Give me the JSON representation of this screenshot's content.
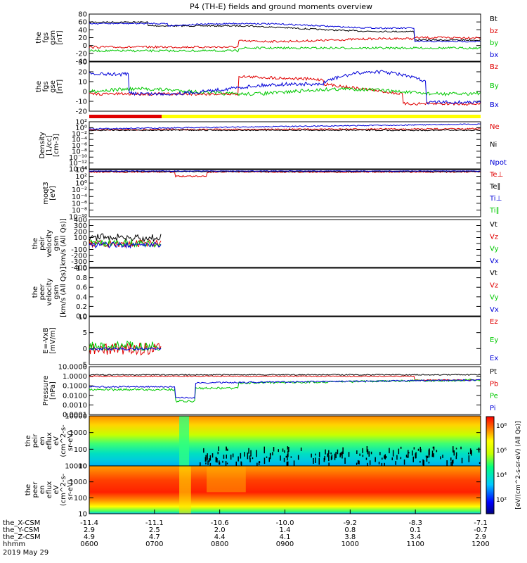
{
  "title": "P4 (TH-E) fields and ground moments overview",
  "colors": {
    "black": "#000000",
    "red": "#e00000",
    "green": "#00c800",
    "blue": "#0000d8",
    "yellow": "#ffff00"
  },
  "chart_data": [
    {
      "type": "line",
      "name": "fgs-gsm",
      "ylabel": [
        "the",
        "fgs",
        "gsm",
        "[nT]"
      ],
      "ylim": [
        -40,
        80
      ],
      "ticks": [
        "80",
        "60",
        "40",
        "20",
        "0",
        "-20",
        "-40"
      ],
      "series": [
        {
          "name": "Bt",
          "color": "black"
        },
        {
          "name": "bz",
          "color": "red"
        },
        {
          "name": "by",
          "color": "green"
        },
        {
          "name": "bx",
          "color": "blue"
        }
      ]
    },
    {
      "type": "line",
      "name": "fgs-gse",
      "ylabel": [
        "the",
        "fgs",
        "gse",
        "[nT]"
      ],
      "ylim": [
        -20,
        30
      ],
      "ticks": [
        "30",
        "20",
        "10",
        "0",
        "-10",
        "-20"
      ],
      "series": [
        {
          "name": "Bz",
          "color": "red"
        },
        {
          "name": "By",
          "color": "green"
        },
        {
          "name": "Bx",
          "color": "blue"
        }
      ]
    },
    {
      "type": "line",
      "name": "density",
      "ylabel": [
        "Density",
        "[1/cc]",
        "[cm-3]"
      ],
      "scale": "log",
      "ticks": [
        "10²",
        "10⁰",
        "10⁻²",
        "10⁻⁴",
        "10⁻⁶",
        "10⁻⁸",
        "10⁻¹⁰",
        "10⁻¹²",
        "10⁻¹⁴"
      ],
      "series": [
        {
          "name": "Ne",
          "color": "red"
        },
        {
          "name": "Ni",
          "color": "black"
        },
        {
          "name": "Npot",
          "color": "blue"
        }
      ]
    },
    {
      "type": "line",
      "name": "temperature",
      "ylabel": [
        "moqt3",
        "[eV]"
      ],
      "scale": "log",
      "ticks": [
        "10⁴",
        "10²",
        "10⁰",
        "10⁻²",
        "10⁻⁴",
        "10⁻⁶",
        "10⁻⁸",
        "10⁻¹⁰"
      ],
      "series": [
        {
          "name": "Te⊥",
          "color": "red"
        },
        {
          "name": "Te∥",
          "color": "black"
        },
        {
          "name": "Ti⊥",
          "color": "blue"
        },
        {
          "name": "Ti∥",
          "color": "green"
        }
      ]
    },
    {
      "type": "line",
      "name": "peir-velocity",
      "ylabel": [
        "the",
        "peir",
        "velocity",
        "gsm",
        "[km/s (All Qs)]"
      ],
      "ylim": [
        -400,
        400
      ],
      "ticks": [
        "400",
        "300",
        "200",
        "100",
        "0",
        "-100",
        "-200",
        "-300",
        "-400"
      ],
      "series": [
        {
          "name": "Vt",
          "color": "black"
        },
        {
          "name": "Vz",
          "color": "red"
        },
        {
          "name": "Vy",
          "color": "green"
        },
        {
          "name": "Vx",
          "color": "blue"
        }
      ]
    },
    {
      "type": "line",
      "name": "peer-velocity",
      "ylabel": [
        "the",
        "peer",
        "velocity",
        "gsm",
        "[km/s (All Qs)]"
      ],
      "ylim": [
        0,
        1
      ],
      "ticks": [
        "1.0",
        "0.8",
        "0.6",
        "0.4",
        "0.2",
        "0.0"
      ],
      "series": [
        {
          "name": "Vt",
          "color": "black"
        },
        {
          "name": "Vz",
          "color": "red"
        },
        {
          "name": "Vy",
          "color": "green"
        },
        {
          "name": "Vx",
          "color": "blue"
        }
      ]
    },
    {
      "type": "line",
      "name": "efield",
      "ylabel": [
        "E=-VxB",
        "[mV/m]"
      ],
      "ylim": [
        -5,
        10
      ],
      "ticks": [
        "10",
        "5",
        "0",
        "-5"
      ],
      "series": [
        {
          "name": "Ez",
          "color": "red"
        },
        {
          "name": "Ey",
          "color": "green"
        },
        {
          "name": "Ex",
          "color": "blue"
        }
      ]
    },
    {
      "type": "line",
      "name": "pressure",
      "ylabel": [
        "Pressure",
        "[nPa]"
      ],
      "scale": "log",
      "ticks": [
        "10.0000",
        "1.0000",
        "0.1000",
        "0.0100",
        "0.0010",
        "0.0001"
      ],
      "series": [
        {
          "name": "Pt",
          "color": "black"
        },
        {
          "name": "Pb",
          "color": "red"
        },
        {
          "name": "Pe",
          "color": "green"
        },
        {
          "name": "Pi",
          "color": "blue"
        }
      ]
    },
    {
      "type": "heatmap",
      "name": "peir-eflux",
      "ylabel": [
        "the",
        "peir",
        "en",
        "eflux",
        "eV",
        "(cm^2-s-",
        "sr-eV)"
      ],
      "ticks": [
        "10000",
        "1000",
        "100",
        "10"
      ]
    },
    {
      "type": "heatmap",
      "name": "peer-eflux",
      "ylabel": [
        "the",
        "peer",
        "en",
        "eflux",
        "eV",
        "(cm^2-s-",
        "sr-eV)"
      ],
      "ticks": [
        "10000",
        "1000",
        "100",
        "10"
      ]
    }
  ],
  "colorbar": {
    "label": "[eV/(cm^2-s-sr-eV) (All Qs)]",
    "ticks": [
      "10⁸",
      "10⁶",
      "10⁴",
      "10²"
    ]
  },
  "xaxis": {
    "rows": [
      {
        "label": "the_X-CSM",
        "values": [
          "-11.4",
          "-11.1",
          "-10.6",
          "-10.0",
          "-9.2",
          "-8.3",
          "-7.1"
        ]
      },
      {
        "label": "the_Y-CSM",
        "values": [
          "2.9",
          "2.5",
          "2.0",
          "1.4",
          "0.8",
          "0.1",
          "-0.7"
        ]
      },
      {
        "label": "the_Z-CSM",
        "values": [
          "4.9",
          "4.7",
          "4.4",
          "4.1",
          "3.8",
          "3.4",
          "2.9"
        ]
      },
      {
        "label": "hhmm",
        "values": [
          "0600",
          "0700",
          "0800",
          "0900",
          "1000",
          "1100",
          "1200"
        ]
      }
    ],
    "date": "2019 May 29"
  }
}
